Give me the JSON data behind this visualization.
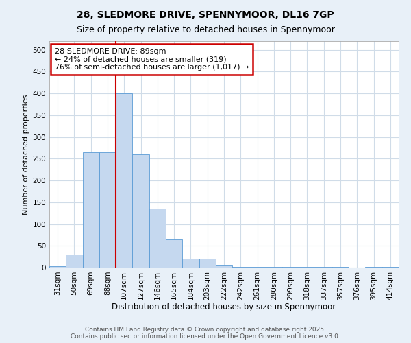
{
  "title1": "28, SLEDMORE DRIVE, SPENNYMOOR, DL16 7GP",
  "title2": "Size of property relative to detached houses in Spennymoor",
  "xlabel": "Distribution of detached houses by size in Spennymoor",
  "ylabel": "Number of detached properties",
  "categories": [
    "31sqm",
    "50sqm",
    "69sqm",
    "88sqm",
    "107sqm",
    "127sqm",
    "146sqm",
    "165sqm",
    "184sqm",
    "203sqm",
    "222sqm",
    "242sqm",
    "261sqm",
    "280sqm",
    "299sqm",
    "318sqm",
    "337sqm",
    "357sqm",
    "376sqm",
    "395sqm",
    "414sqm"
  ],
  "values": [
    3,
    30,
    265,
    265,
    400,
    260,
    135,
    65,
    20,
    20,
    5,
    2,
    1,
    1,
    1,
    1,
    1,
    1,
    0,
    1,
    1
  ],
  "bar_color": "#c5d8ef",
  "bar_edge_color": "#5b9bd5",
  "vline_color": "#cc0000",
  "vline_x": 3.5,
  "annotation_text": "28 SLEDMORE DRIVE: 89sqm\n← 24% of detached houses are smaller (319)\n76% of semi-detached houses are larger (1,017) →",
  "annotation_edge_color": "#cc0000",
  "ylim": [
    0,
    520
  ],
  "yticks": [
    0,
    50,
    100,
    150,
    200,
    250,
    300,
    350,
    400,
    450,
    500
  ],
  "bg_color": "#e8f0f8",
  "plot_bg_color": "#ffffff",
  "grid_color": "#d0dce8",
  "footer_text": "Contains HM Land Registry data © Crown copyright and database right 2025.\nContains public sector information licensed under the Open Government Licence v3.0.",
  "title1_fontsize": 10,
  "title2_fontsize": 9,
  "xlabel_fontsize": 8.5,
  "ylabel_fontsize": 8,
  "tick_fontsize": 7.5,
  "annotation_fontsize": 8,
  "footer_fontsize": 6.5
}
